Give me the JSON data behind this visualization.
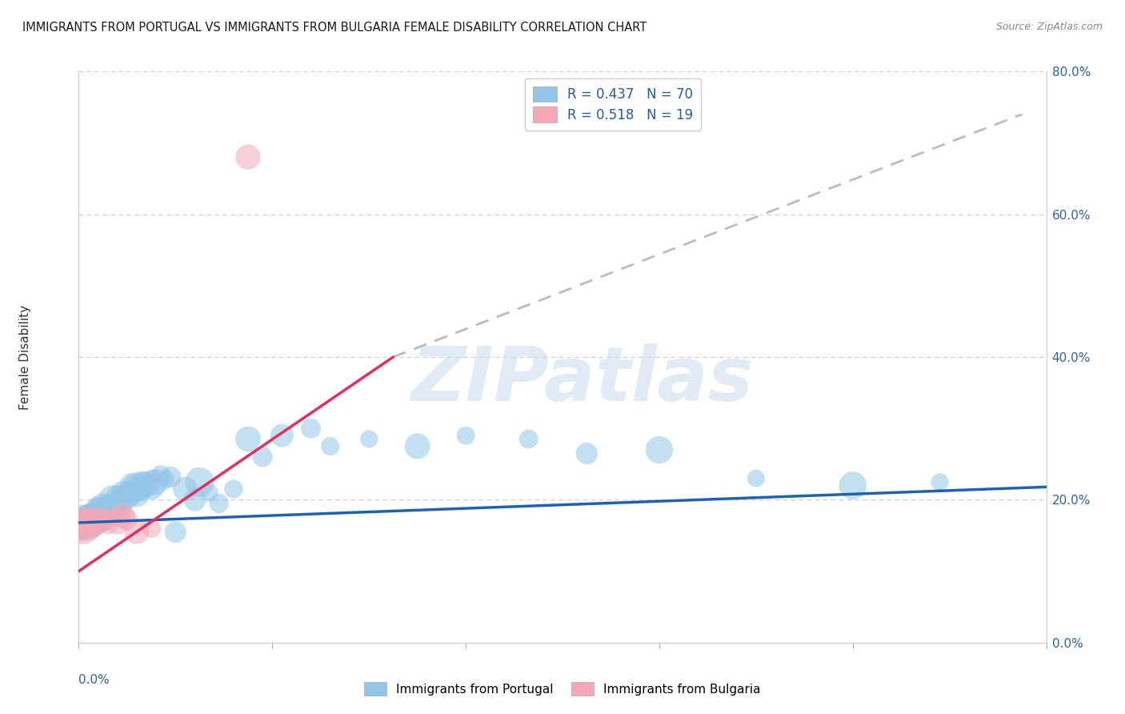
{
  "title": "IMMIGRANTS FROM PORTUGAL VS IMMIGRANTS FROM BULGARIA FEMALE DISABILITY CORRELATION CHART",
  "source": "Source: ZipAtlas.com",
  "ylabel_left": "Female Disability",
  "right_yticklabels": [
    "0.0%",
    "20.0%",
    "40.0%",
    "60.0%",
    "80.0%"
  ],
  "right_ytick_vals": [
    0.0,
    0.2,
    0.4,
    0.6,
    0.8
  ],
  "xlim": [
    0.0,
    0.2
  ],
  "ylim": [
    0.0,
    0.8
  ],
  "legend_R_portugal": "0.437",
  "legend_N_portugal": "70",
  "legend_R_bulgaria": "0.518",
  "legend_N_bulgaria": "19",
  "color_portugal": "#92C5E8",
  "color_bulgaria": "#F4A8B8",
  "color_trendline_portugal": "#2060B0",
  "color_trendline_bulgaria": "#E03060",
  "color_dashed_line": "#BBBBBB",
  "watermark_text": "ZIPatlas",
  "watermark_color": "#C8D8F0",
  "background_color": "#FFFFFF",
  "portugal_x": [
    0.0005,
    0.001,
    0.001,
    0.001,
    0.0015,
    0.0015,
    0.002,
    0.002,
    0.002,
    0.0025,
    0.0025,
    0.003,
    0.003,
    0.003,
    0.003,
    0.0035,
    0.0035,
    0.004,
    0.004,
    0.004,
    0.0045,
    0.005,
    0.005,
    0.005,
    0.006,
    0.006,
    0.006,
    0.007,
    0.007,
    0.008,
    0.008,
    0.008,
    0.009,
    0.009,
    0.01,
    0.01,
    0.011,
    0.011,
    0.012,
    0.012,
    0.013,
    0.013,
    0.014,
    0.015,
    0.015,
    0.016,
    0.017,
    0.018,
    0.019,
    0.02,
    0.022,
    0.024,
    0.025,
    0.027,
    0.029,
    0.032,
    0.035,
    0.038,
    0.042,
    0.048,
    0.052,
    0.06,
    0.07,
    0.08,
    0.093,
    0.105,
    0.12,
    0.14,
    0.16,
    0.178
  ],
  "portugal_y": [
    0.17,
    0.175,
    0.165,
    0.16,
    0.172,
    0.168,
    0.178,
    0.173,
    0.163,
    0.176,
    0.171,
    0.18,
    0.175,
    0.168,
    0.16,
    0.182,
    0.177,
    0.185,
    0.18,
    0.172,
    0.183,
    0.19,
    0.185,
    0.175,
    0.195,
    0.188,
    0.178,
    0.2,
    0.192,
    0.205,
    0.198,
    0.188,
    0.21,
    0.2,
    0.215,
    0.205,
    0.22,
    0.21,
    0.218,
    0.208,
    0.225,
    0.215,
    0.222,
    0.23,
    0.218,
    0.225,
    0.235,
    0.228,
    0.232,
    0.155,
    0.215,
    0.2,
    0.225,
    0.21,
    0.195,
    0.215,
    0.285,
    0.26,
    0.29,
    0.3,
    0.275,
    0.285,
    0.275,
    0.29,
    0.285,
    0.265,
    0.27,
    0.23,
    0.22,
    0.225
  ],
  "bulgaria_x": [
    0.0005,
    0.001,
    0.001,
    0.0015,
    0.002,
    0.002,
    0.003,
    0.003,
    0.004,
    0.004,
    0.005,
    0.006,
    0.007,
    0.008,
    0.009,
    0.01,
    0.012,
    0.015,
    0.035
  ],
  "bulgaria_y": [
    0.162,
    0.168,
    0.158,
    0.172,
    0.165,
    0.175,
    0.17,
    0.162,
    0.175,
    0.165,
    0.172,
    0.168,
    0.175,
    0.17,
    0.178,
    0.172,
    0.155,
    0.16,
    0.68
  ],
  "trendline_portugal_x0": 0.0,
  "trendline_portugal_x1": 0.2,
  "trendline_portugal_y0": 0.168,
  "trendline_portugal_y1": 0.218,
  "trendline_bulgaria_solid_x0": 0.0,
  "trendline_bulgaria_solid_x1": 0.065,
  "trendline_bulgaria_solid_y0": 0.1,
  "trendline_bulgaria_solid_y1": 0.4,
  "trendline_bulgaria_dashed_x0": 0.065,
  "trendline_bulgaria_dashed_x1": 0.195,
  "trendline_bulgaria_dashed_y0": 0.4,
  "trendline_bulgaria_dashed_y1": 0.74
}
